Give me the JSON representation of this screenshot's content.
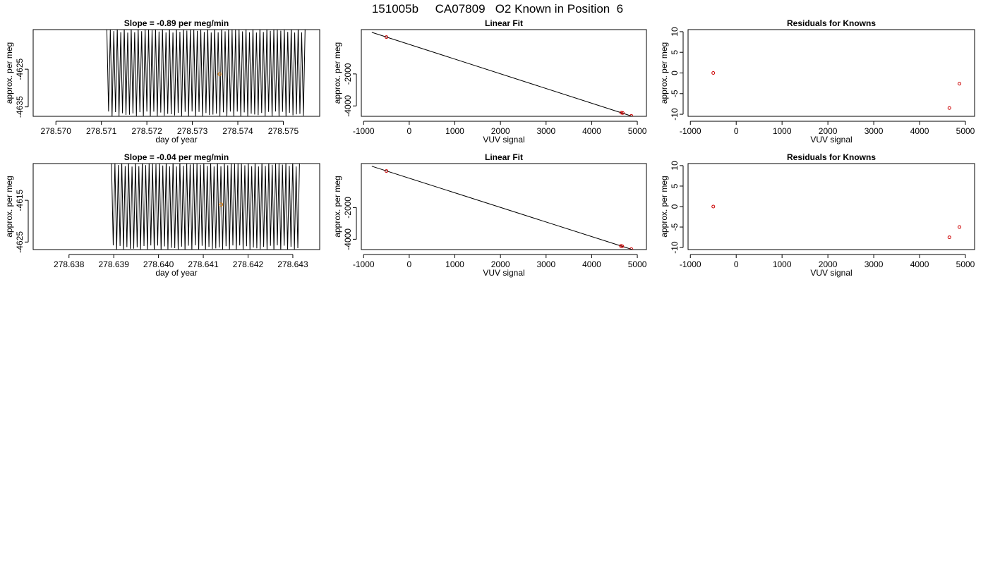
{
  "title": "151005b     CA07809   O2 Known in Position  6",
  "colors": {
    "trace": "#000000",
    "known_point": "#cc0000",
    "mean_point": "#e07b00",
    "frame": "#000000"
  },
  "chart_data": [
    {
      "type": "line",
      "title": "Slope =  -0.89  per meg/min",
      "xlabel": "day of year",
      "ylabel": "approx. per meg",
      "xlim": [
        278.5695,
        278.5758
      ],
      "ylim": [
        -4637.5,
        -4614.5
      ],
      "xticks": [
        "278.570",
        "278.571",
        "278.572",
        "278.573",
        "278.574",
        "278.575"
      ],
      "yticks": [
        "-4625",
        "-4635"
      ],
      "trace": {
        "x_start": 278.57112,
        "x_end": 278.57548,
        "cycles": 57,
        "upper": -4614.5,
        "lower": -4637.0
      },
      "mean_point": {
        "x": 278.5736,
        "y": -4626.3
      }
    },
    {
      "type": "scatter",
      "title": "Linear Fit",
      "xlabel": "VUV signal",
      "ylabel": "approx. per meg",
      "xlim": [
        -1050,
        5200
      ],
      "ylim": [
        -4650,
        770
      ],
      "xticks": [
        "-1000",
        "0",
        "1000",
        "2000",
        "3000",
        "4000",
        "5000"
      ],
      "yticks": [
        "-2000",
        "-4000"
      ],
      "fit_line": [
        [
          -820,
          600
        ],
        [
          4880,
          -4640
        ]
      ],
      "points": [
        [
          -500,
          300
        ],
        [
          4650,
          -4425
        ],
        [
          4680,
          -4440
        ],
        [
          4870,
          -4622
        ]
      ]
    },
    {
      "type": "scatter",
      "title": "Residuals for Knowns",
      "xlabel": "VUV signal",
      "ylabel": "approx. per meg",
      "xlim": [
        -1050,
        5200
      ],
      "ylim": [
        -10.5,
        10.5
      ],
      "xticks": [
        "-1000",
        "0",
        "1000",
        "2000",
        "3000",
        "4000",
        "5000"
      ],
      "yticks": [
        "10",
        "5",
        "0",
        "-5",
        "-10"
      ],
      "points": [
        [
          -500,
          0.0
        ],
        [
          4650,
          -8.5
        ],
        [
          4870,
          -2.6
        ]
      ]
    },
    {
      "type": "line",
      "title": "Slope =  -0.04  per meg/min",
      "xlabel": "day of year",
      "ylabel": "approx. per meg",
      "xlim": [
        278.6372,
        278.6436
      ],
      "ylim": [
        -4626.8,
        -4606.2
      ],
      "xticks": [
        "278.638",
        "278.639",
        "278.640",
        "278.641",
        "278.642",
        "278.643"
      ],
      "yticks": [
        "-4615",
        "-4625"
      ],
      "trace": {
        "x_start": 278.63895,
        "x_end": 278.64315,
        "cycles": 55,
        "upper": -4606.2,
        "lower": -4626.5
      },
      "mean_point": {
        "x": 278.6414,
        "y": -4616.0
      }
    },
    {
      "type": "scatter",
      "title": "Linear Fit",
      "xlabel": "VUV signal",
      "ylabel": "approx. per meg",
      "xlim": [
        -1050,
        5200
      ],
      "ylim": [
        -4650,
        770
      ],
      "xticks": [
        "-1000",
        "0",
        "1000",
        "2000",
        "3000",
        "4000",
        "5000"
      ],
      "yticks": [
        "-2000",
        "-4000"
      ],
      "fit_line": [
        [
          -820,
          600
        ],
        [
          4880,
          -4640
        ]
      ],
      "points": [
        [
          -500,
          300
        ],
        [
          4640,
          -4425
        ],
        [
          4670,
          -4440
        ],
        [
          4870,
          -4622
        ]
      ]
    },
    {
      "type": "scatter",
      "title": "Residuals for Knowns",
      "xlabel": "VUV signal",
      "ylabel": "approx. per meg",
      "xlim": [
        -1050,
        5200
      ],
      "ylim": [
        -10.5,
        10.5
      ],
      "xticks": [
        "-1000",
        "0",
        "1000",
        "2000",
        "3000",
        "4000",
        "5000"
      ],
      "yticks": [
        "10",
        "5",
        "0",
        "-5",
        "-10"
      ],
      "points": [
        [
          -500,
          0.0
        ],
        [
          4650,
          -7.5
        ],
        [
          4870,
          -5.0
        ]
      ]
    }
  ]
}
